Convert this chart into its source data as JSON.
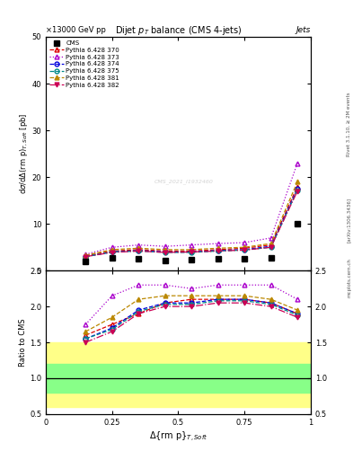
{
  "title_main": "Dijet $p_T$ balance (CMS 4-jets)",
  "header_left": "×13000 GeV pp",
  "header_right": "Jets",
  "rivet_label": "Rivet 3.1.10, ≥ 2M events",
  "arxiv_label": "[arXiv:1306.3436]",
  "mcplots_label": "mcplots.cern.ch",
  "watermark": "CMS_2021_I1932460",
  "ylim_main": [
    0,
    50
  ],
  "ylim_ratio": [
    0.5,
    2.5
  ],
  "xlim": [
    0,
    1.0
  ],
  "x_data": [
    0.15,
    0.25,
    0.35,
    0.45,
    0.55,
    0.65,
    0.75,
    0.85,
    0.95
  ],
  "cms_data": [
    2.0,
    2.8,
    2.5,
    2.2,
    2.3,
    2.5,
    2.5,
    2.8,
    10.0
  ],
  "series": [
    {
      "label": "Pythia 6.428 370",
      "color": "#dd0000",
      "linestyle": "--",
      "marker": "^",
      "markerfacecolor": "none",
      "values": [
        3.2,
        4.2,
        4.5,
        4.2,
        4.2,
        4.5,
        4.8,
        5.5,
        18.0
      ]
    },
    {
      "label": "Pythia 6.428 373",
      "color": "#aa00cc",
      "linestyle": ":",
      "marker": "^",
      "markerfacecolor": "none",
      "values": [
        3.5,
        5.0,
        5.5,
        5.2,
        5.5,
        5.8,
        6.0,
        7.0,
        23.0
      ]
    },
    {
      "label": "Pythia 6.428 374",
      "color": "#0000dd",
      "linestyle": "--",
      "marker": "o",
      "markerfacecolor": "none",
      "values": [
        3.0,
        4.0,
        4.3,
        4.0,
        4.0,
        4.3,
        4.5,
        5.2,
        17.5
      ]
    },
    {
      "label": "Pythia 6.428 375",
      "color": "#008888",
      "linestyle": "--",
      "marker": "o",
      "markerfacecolor": "none",
      "values": [
        3.0,
        4.0,
        4.2,
        3.9,
        3.9,
        4.2,
        4.4,
        5.0,
        17.2
      ]
    },
    {
      "label": "Pythia 6.428 381",
      "color": "#bb8800",
      "linestyle": "--",
      "marker": "^",
      "markerfacecolor": "#bb8800",
      "values": [
        3.3,
        4.5,
        4.8,
        4.5,
        4.5,
        4.8,
        5.0,
        5.8,
        19.0
      ]
    },
    {
      "label": "Pythia 6.428 382",
      "color": "#cc0055",
      "linestyle": "-.",
      "marker": "v",
      "markerfacecolor": "#cc0055",
      "values": [
        3.0,
        3.9,
        4.2,
        3.9,
        4.0,
        4.2,
        4.4,
        5.0,
        17.0
      ]
    }
  ],
  "ratio_series": [
    {
      "color": "#dd0000",
      "linestyle": "--",
      "marker": "^",
      "markerfacecolor": "none",
      "values": [
        1.6,
        1.75,
        1.9,
        2.05,
        2.1,
        2.1,
        2.1,
        2.05,
        1.9
      ]
    },
    {
      "color": "#aa00cc",
      "linestyle": ":",
      "marker": "^",
      "markerfacecolor": "none",
      "values": [
        1.75,
        2.15,
        2.3,
        2.3,
        2.25,
        2.3,
        2.3,
        2.3,
        2.1
      ]
    },
    {
      "color": "#0000dd",
      "linestyle": "--",
      "marker": "o",
      "markerfacecolor": "none",
      "values": [
        1.55,
        1.7,
        1.95,
        2.05,
        2.05,
        2.1,
        2.1,
        2.05,
        1.9
      ]
    },
    {
      "color": "#008888",
      "linestyle": "--",
      "marker": "o",
      "markerfacecolor": "none",
      "values": [
        1.55,
        1.68,
        1.93,
        2.03,
        2.03,
        2.08,
        2.08,
        2.03,
        1.88
      ]
    },
    {
      "color": "#bb8800",
      "linestyle": "--",
      "marker": "^",
      "markerfacecolor": "#bb8800",
      "values": [
        1.65,
        1.85,
        2.1,
        2.15,
        2.15,
        2.15,
        2.15,
        2.1,
        1.95
      ]
    },
    {
      "color": "#cc0055",
      "linestyle": "-.",
      "marker": "v",
      "markerfacecolor": "#cc0055",
      "values": [
        1.5,
        1.65,
        1.9,
        2.0,
        2.0,
        2.05,
        2.05,
        2.0,
        1.85
      ]
    }
  ],
  "green_band": [
    0.8,
    1.2
  ],
  "yellow_band": [
    0.6,
    1.5
  ],
  "background_color": "#ffffff"
}
